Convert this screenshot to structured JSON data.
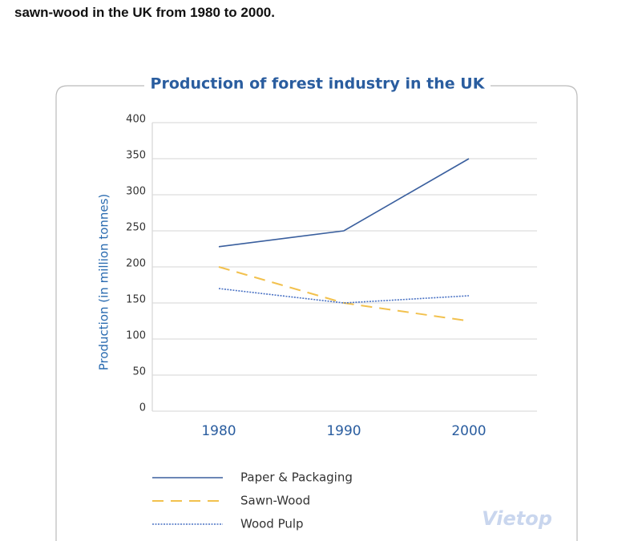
{
  "page_text": "sawn-wood in the UK from 1980 to 2000.",
  "watermark": "Vietop",
  "chart_data": {
    "type": "line",
    "title": "Production of forest industry in the UK",
    "y_label": "Production (in million tonnes)",
    "categories": [
      "1980",
      "1990",
      "2000"
    ],
    "series": [
      {
        "name": "Paper & Packaging",
        "color": "#3a5f9e",
        "style": "solid",
        "values": [
          228,
          250,
          350
        ]
      },
      {
        "name": "Sawn-Wood",
        "color": "#f2c14e",
        "style": "dashed",
        "values": [
          200,
          150,
          125
        ]
      },
      {
        "name": "Wood Pulp",
        "color": "#4a72c4",
        "style": "dotted",
        "values": [
          170,
          150,
          160
        ]
      }
    ],
    "ylim": [
      0,
      400
    ],
    "yticks": [
      0,
      50,
      100,
      150,
      200,
      250,
      300,
      350,
      400
    ],
    "grid": true
  }
}
